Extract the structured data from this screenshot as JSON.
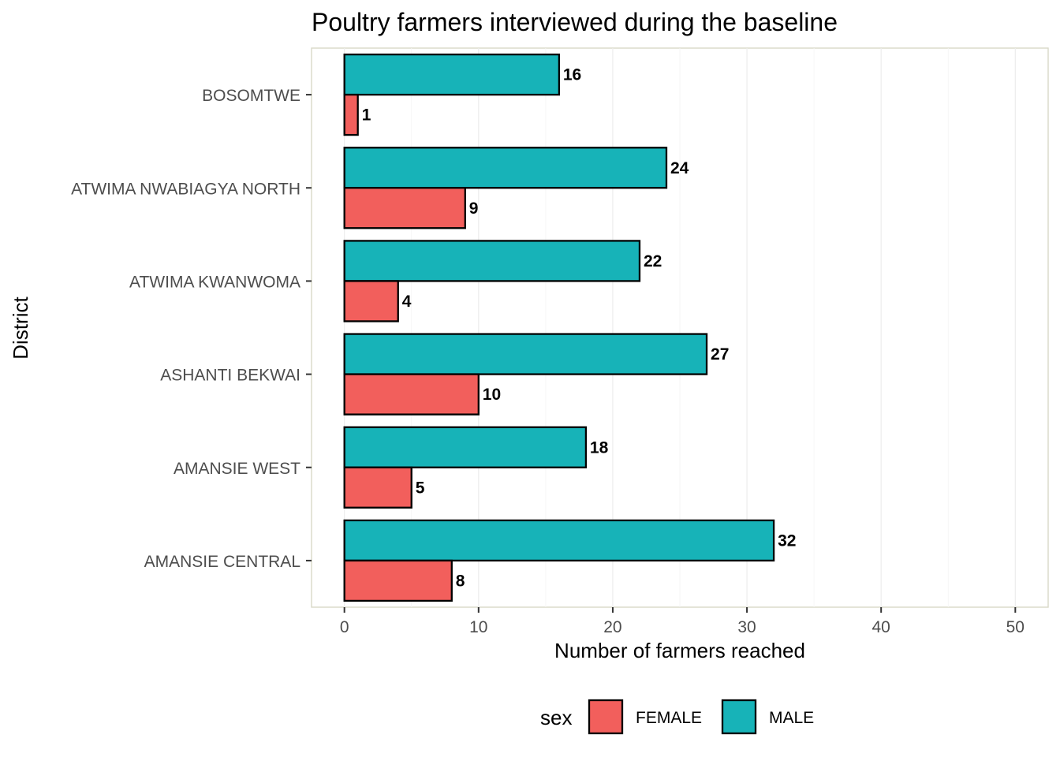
{
  "chart_data": {
    "type": "bar",
    "orientation": "horizontal",
    "title": "Poultry farmers interviewed during the baseline",
    "xlabel": "Number of farmers reached",
    "ylabel": "District",
    "xlim": [
      0,
      51
    ],
    "xticks": [
      0,
      10,
      20,
      30,
      40,
      50
    ],
    "grid": true,
    "legend": {
      "title": "sex",
      "position": "bottom"
    },
    "categories": [
      "BOSOMTWE",
      "ATWIMA NWABIAGYA NORTH",
      "ATWIMA KWANWOMA",
      "ASHANTI BEKWAI",
      "AMANSIE WEST",
      "AMANSIE CENTRAL"
    ],
    "series": [
      {
        "name": "FEMALE",
        "color": "#F8766D",
        "values": [
          1,
          9,
          4,
          10,
          5,
          8
        ]
      },
      {
        "name": "MALE",
        "color": "#00BFC4",
        "values": [
          16,
          24,
          22,
          27,
          18,
          32
        ]
      }
    ],
    "bar_fill": {
      "FEMALE": "#f25f5c",
      "MALE": "#17b3b8"
    }
  }
}
